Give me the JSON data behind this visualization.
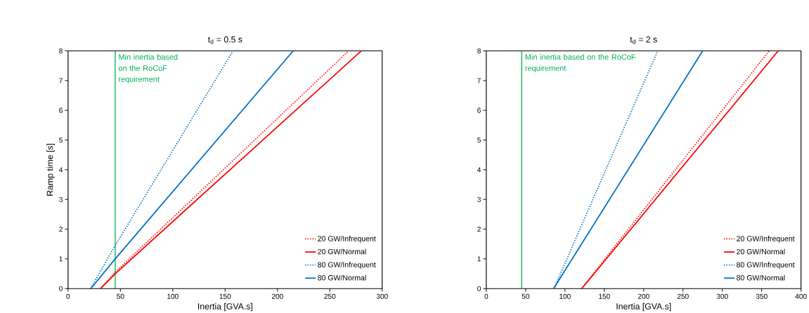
{
  "chart_data": [
    {
      "type": "line",
      "title": "t$_{d}$ = 0.5 s",
      "xlabel": "Inertia [GVA.s]",
      "ylabel": "Ramp time [s]",
      "xlim": [
        0,
        300
      ],
      "ylim": [
        0,
        8
      ],
      "xticks": [
        0,
        50,
        100,
        150,
        200,
        250,
        300
      ],
      "yticks": [
        0,
        1,
        2,
        3,
        4,
        5,
        6,
        7,
        8
      ],
      "legend": "bottom right",
      "series": [
        {
          "name": "20 GW/Infrequent",
          "color": "#ff0000",
          "line_style": "dotted",
          "x": [
            31,
            45,
            268
          ],
          "values": [
            0,
            0.55,
            8
          ]
        },
        {
          "name": "20 GW/Normal",
          "color": "#ff0000",
          "line_style": "solid",
          "x": [
            31,
            45,
            280
          ],
          "values": [
            0,
            0.5,
            8
          ]
        },
        {
          "name": "80 GW/Infrequent",
          "color": "#0070c0",
          "line_style": "dotted",
          "x": [
            21.5,
            45,
            157.5
          ],
          "values": [
            0,
            1.45,
            8
          ]
        },
        {
          "name": "80 GW/Normal",
          "color": "#0070c0",
          "line_style": "solid",
          "x": [
            21.7,
            45,
            215
          ],
          "values": [
            0,
            1,
            8
          ]
        }
      ],
      "ref_lines": [
        {
          "axis": "x",
          "value": 45,
          "label": "Min inertia based on the RoCoF requirement",
          "color": "#00b050"
        }
      ]
    },
    {
      "type": "line",
      "title": "t$_{d}$ = 2 s",
      "xlabel": "Inertia [GVA.s]",
      "xlim": [
        0,
        400
      ],
      "ylim": [
        0,
        8
      ],
      "xticks": [
        0,
        50,
        100,
        150,
        200,
        250,
        300,
        350,
        400
      ],
      "yticks": [
        0,
        1,
        2,
        3,
        4,
        5,
        6,
        7,
        8
      ],
      "legend": "bottom right",
      "series": [
        {
          "name": "20 GW/Infrequent",
          "color": "#ff0000",
          "line_style": "dotted",
          "x": [
            121,
            359.5
          ],
          "values": [
            0,
            8
          ]
        },
        {
          "name": "20 GW/Normal",
          "color": "#ff0000",
          "line_style": "solid",
          "x": [
            121.3,
            371
          ],
          "values": [
            0,
            8
          ]
        },
        {
          "name": "80 GW/Infrequent",
          "color": "#0070c0",
          "line_style": "dotted",
          "x": [
            86,
            217.8
          ],
          "values": [
            0,
            8
          ]
        },
        {
          "name": "80 GW/Normal",
          "color": "#0070c0",
          "line_style": "solid",
          "x": [
            85.5,
            275
          ],
          "values": [
            0,
            8
          ]
        }
      ],
      "ref_lines": [
        {
          "axis": "x",
          "value": 45,
          "label": "Min inertia based on the RoCoF requirement",
          "color": "#00b050"
        }
      ]
    }
  ]
}
